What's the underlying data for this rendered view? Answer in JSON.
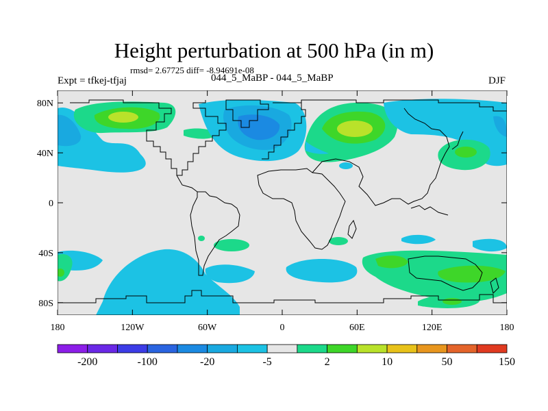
{
  "title": "Height perturbation at 500 hPa (in m)",
  "stats": "rmsd= 2.67725 diff= -8.94691e-08",
  "experiment": "Expt = tfkej-tfjaj",
  "comparison": "044_5_MaBP - 044_5_MaBP",
  "season": "DJF",
  "axes": {
    "x_ticks": [
      {
        "value": -180,
        "label": "180"
      },
      {
        "value": -120,
        "label": "120W"
      },
      {
        "value": -60,
        "label": "60W"
      },
      {
        "value": 0,
        "label": "0"
      },
      {
        "value": 60,
        "label": "60E"
      },
      {
        "value": 120,
        "label": "120E"
      },
      {
        "value": 180,
        "label": "180"
      }
    ],
    "y_ticks": [
      {
        "value": 80,
        "label": "80N"
      },
      {
        "value": 40,
        "label": "40N"
      },
      {
        "value": 0,
        "label": "0"
      },
      {
        "value": -40,
        "label": "40S"
      },
      {
        "value": -80,
        "label": "80S"
      }
    ],
    "lon_range": [
      -180,
      180
    ],
    "lat_range": [
      -90,
      90
    ]
  },
  "colorbar": {
    "colors": [
      "#8c1ee8",
      "#6a28e6",
      "#3c3ce6",
      "#2a64e0",
      "#1b8ae2",
      "#19a9e0",
      "#1cc2e4",
      "#e6e6e6",
      "#1cd98a",
      "#3ed629",
      "#b9e22a",
      "#e8c21a",
      "#e8961e",
      "#e4642a",
      "#e03a20"
    ],
    "labels": [
      "-200",
      "-100",
      "-20",
      "-5",
      "2",
      "10",
      "50",
      "150"
    ]
  },
  "chart_data": {
    "type": "filled-contour-map",
    "projection": "cylindrical-equidistant",
    "background_level": "no change (-2 to 2)",
    "regions": [
      {
        "color": "#1cd98a",
        "lon_range": [
          -150,
          -95
        ],
        "lat_range": [
          45,
          78
        ]
      },
      {
        "color": "#3ed629",
        "lon_range": [
          -135,
          -110
        ],
        "lat_range": [
          58,
          72
        ]
      },
      {
        "color": "#b9e22a",
        "lon_range": [
          -128,
          -120
        ],
        "lat_range": [
          63,
          69
        ]
      },
      {
        "color": "#1cc2e4",
        "lon_range": [
          -180,
          -130
        ],
        "lat_range": [
          28,
          72
        ]
      },
      {
        "color": "#1cc2e4",
        "lon_range": [
          -45,
          15
        ],
        "lat_range": [
          38,
          80
        ]
      },
      {
        "color": "#19a9e0",
        "lon_range": [
          -40,
          5
        ],
        "lat_range": [
          45,
          75
        ]
      },
      {
        "color": "#1b8ae2",
        "lon_range": [
          -30,
          0
        ],
        "lat_range": [
          52,
          70
        ]
      },
      {
        "color": "#1cd98a",
        "lon_range": [
          10,
          95
        ],
        "lat_range": [
          35,
          80
        ]
      },
      {
        "color": "#3ed629",
        "lon_range": [
          35,
          80
        ],
        "lat_range": [
          48,
          72
        ]
      },
      {
        "color": "#b9e22a",
        "lon_range": [
          52,
          70
        ],
        "lat_range": [
          55,
          64
        ]
      },
      {
        "color": "#1cc2e4",
        "lon_range": [
          90,
          180
        ],
        "lat_range": [
          50,
          80
        ]
      },
      {
        "color": "#1cd98a",
        "lon_range": [
          115,
          165
        ],
        "lat_range": [
          28,
          55
        ]
      },
      {
        "color": "#1cc2e4",
        "lon_range": [
          -165,
          -20
        ],
        "lat_range": [
          -85,
          -50
        ]
      },
      {
        "color": "#1cd98a",
        "lon_range": [
          -180,
          -155
        ],
        "lat_range": [
          -70,
          -55
        ]
      },
      {
        "color": "#1cc2e4",
        "lon_range": [
          5,
          55
        ],
        "lat_range": [
          -68,
          -48
        ]
      },
      {
        "color": "#1cd98a",
        "lon_range": [
          90,
          180
        ],
        "lat_range": [
          -85,
          -45
        ]
      },
      {
        "color": "#3ed629",
        "lon_range": [
          120,
          170
        ],
        "lat_range": [
          -65,
          -55
        ]
      },
      {
        "color": "#1cc2e4",
        "lon_range": [
          130,
          180
        ],
        "lat_range": [
          -48,
          -35
        ]
      }
    ]
  }
}
